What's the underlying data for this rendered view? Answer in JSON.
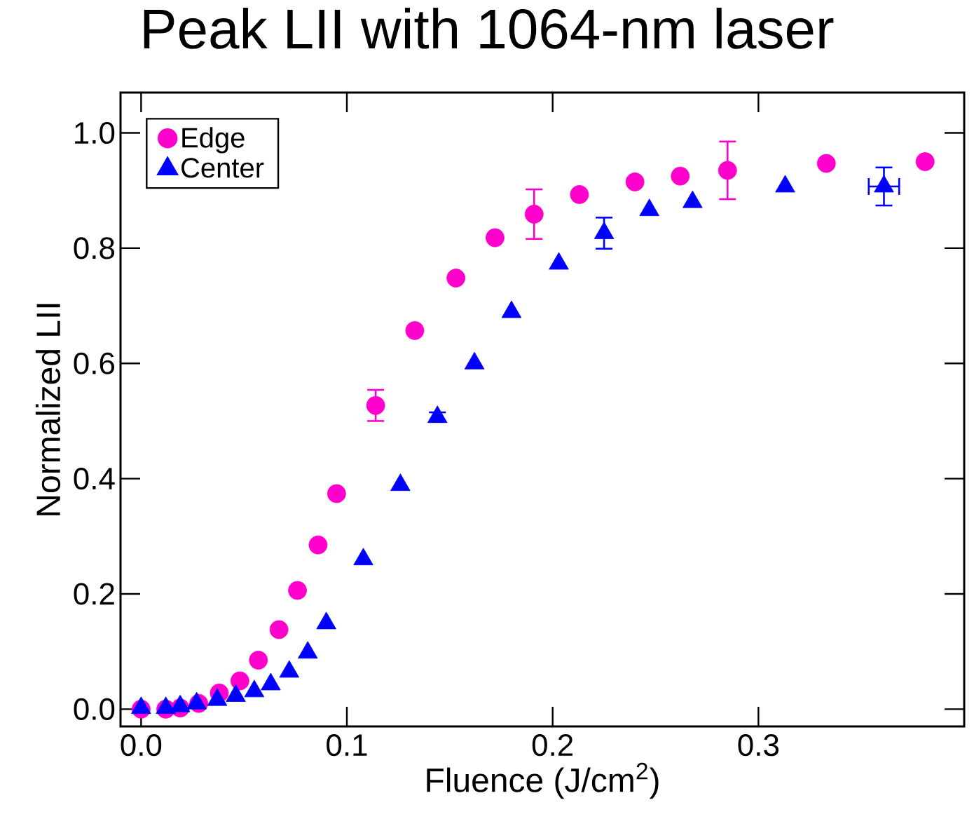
{
  "chart_data": {
    "type": "scatter",
    "title": "Peak LII with 1064-nm laser",
    "xlabel": "Fluence (J/cm$^{2}$)",
    "ylabel": "Normalized LII",
    "xlim": [
      -0.01,
      0.4
    ],
    "ylim": [
      -0.03,
      1.07
    ],
    "xticks": [
      {
        "value": 0,
        "label": "0.0"
      },
      0.1,
      0.2,
      0.3
    ],
    "yticks": [
      {
        "value": 0,
        "label": "0.0"
      },
      0.2,
      0.4,
      0.6,
      0.8,
      {
        "value": 1,
        "label": "1.0"
      }
    ],
    "grid": false,
    "legend": "top left",
    "series": [
      {
        "name": "Edge",
        "color": "#ff00cc",
        "marker": "circle",
        "x": [
          0,
          0.012,
          0.019,
          0.028,
          0.038,
          0.048,
          0.057,
          0.067,
          0.076,
          0.086,
          0.095,
          0.114,
          0.133,
          0.153,
          0.172,
          0.191,
          0.213,
          0.24,
          0.262,
          0.285,
          0.333,
          0.381
        ],
        "values": [
          0,
          0,
          0.002,
          0.01,
          0.028,
          0.049,
          0.085,
          0.138,
          0.206,
          0.285,
          0.374,
          0.527,
          0.657,
          0.748,
          0.818,
          0.859,
          0.893,
          0.915,
          0.925,
          0.935,
          0.947,
          0.95
        ],
        "errors": [
          null,
          null,
          null,
          null,
          null,
          null,
          null,
          null,
          null,
          null,
          null,
          0.027,
          null,
          null,
          null,
          0.043,
          null,
          null,
          null,
          0.05,
          null,
          null
        ]
      },
      {
        "name": "Center",
        "color": "#0000ff",
        "marker": "triangle",
        "x": [
          0,
          0.012,
          0.019,
          0.027,
          0.037,
          0.046,
          0.055,
          0.063,
          0.072,
          0.081,
          0.09,
          0.108,
          0.126,
          0.144,
          0.162,
          0.18,
          0.203,
          0.225,
          0.247,
          0.268,
          0.313,
          0.361
        ],
        "values": [
          0.002,
          0.002,
          0.005,
          0.01,
          0.016,
          0.023,
          0.031,
          0.043,
          0.065,
          0.098,
          0.149,
          0.26,
          0.389,
          0.507,
          0.6,
          0.689,
          0.773,
          0.826,
          0.866,
          0.88,
          0.907,
          0.907
        ],
        "errors": [
          null,
          null,
          null,
          null,
          null,
          null,
          null,
          null,
          null,
          null,
          null,
          null,
          null,
          0.008,
          null,
          null,
          null,
          0.027,
          null,
          null,
          null,
          0.033
        ],
        "xerrors": [
          null,
          null,
          null,
          null,
          null,
          null,
          null,
          null,
          null,
          null,
          null,
          null,
          null,
          null,
          null,
          null,
          null,
          null,
          null,
          null,
          null,
          0.0074
        ]
      }
    ]
  }
}
